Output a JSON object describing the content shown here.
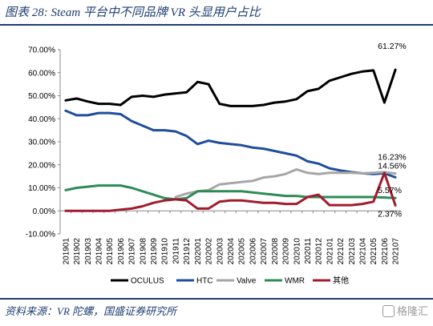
{
  "title": "图表 28:  Steam 平台中不同品牌 VR 头显用户占比",
  "source": "资料来源：VR 陀螺，国盛证券研究所",
  "watermark": "格隆汇",
  "chart_data": {
    "type": "line",
    "x": [
      "201901",
      "201902",
      "201903",
      "201904",
      "201905",
      "201906",
      "201907",
      "201908",
      "201909",
      "201910",
      "201911",
      "201912",
      "202001",
      "202002",
      "202003",
      "202004",
      "202005",
      "202006",
      "202007",
      "202008",
      "202009",
      "202010",
      "202011",
      "202012",
      "202101",
      "202102",
      "202103",
      "202104",
      "202105",
      "202106",
      "202107"
    ],
    "y_ticks": [
      "70.00%",
      "60.00%",
      "50.00%",
      "40.00%",
      "30.00%",
      "20.00%",
      "10.00%",
      "0.00%",
      "-10.00%"
    ],
    "ylim": [
      -10,
      70
    ],
    "grid": false,
    "legend_position": "bottom",
    "series": [
      {
        "name": "OCULUS",
        "color": "#000000",
        "values": [
          48,
          48.8,
          47.5,
          46.5,
          46.5,
          46,
          49.5,
          50,
          49.5,
          50.5,
          51,
          51.5,
          56,
          55,
          46.5,
          45.5,
          45.5,
          45.5,
          46,
          47,
          47.5,
          48.5,
          52,
          53,
          56.5,
          58,
          59.5,
          60.5,
          61,
          47,
          61.27
        ]
      },
      {
        "name": "HTC",
        "color": "#1f4e9a",
        "values": [
          43.5,
          41.5,
          41.5,
          42.5,
          42.5,
          42,
          39,
          37,
          35,
          35,
          34.5,
          32.5,
          29,
          30.5,
          29.5,
          29,
          28.5,
          27.5,
          27,
          26,
          25,
          24,
          21.5,
          20.5,
          18.5,
          17.5,
          16.8,
          16.3,
          16,
          16.3,
          14.56
        ]
      },
      {
        "name": "Valve",
        "color": "#a6a6a6",
        "values": [
          null,
          null,
          null,
          null,
          null,
          null,
          null,
          null,
          null,
          null,
          6,
          7.5,
          8.5,
          9,
          11.5,
          12,
          12.5,
          13,
          14.5,
          15,
          16,
          18,
          16.5,
          16,
          16.5,
          16.5,
          16.5,
          16.3,
          16.5,
          16.8,
          16.23
        ]
      },
      {
        "name": "WMR",
        "color": "#2e8b57",
        "values": [
          9,
          10,
          10.5,
          11,
          11,
          11,
          10,
          8.5,
          7,
          5.5,
          5,
          5.5,
          8.5,
          8.5,
          8.5,
          8.5,
          8.5,
          8,
          7.5,
          7,
          6.5,
          6.5,
          6,
          6,
          6,
          6,
          6,
          6,
          6,
          5.8,
          5.57
        ]
      },
      {
        "name": "其他",
        "color": "#a01c2e",
        "values": [
          0,
          0,
          0,
          0,
          0,
          0.5,
          1,
          2,
          3.5,
          4.5,
          5,
          4.5,
          1,
          1,
          4,
          4.5,
          4.5,
          4,
          3.5,
          3.5,
          3,
          3,
          6,
          7,
          2.5,
          2.5,
          2.5,
          3,
          4,
          16.5,
          2.37
        ]
      }
    ],
    "annotations": [
      {
        "text": "61.27%",
        "series": "OCULUS",
        "index": 30
      },
      {
        "text": "16.23%",
        "series": "Valve",
        "index": 30
      },
      {
        "text": "14.56%",
        "series": "HTC",
        "index": 30
      },
      {
        "text": "5.57%",
        "series": "WMR",
        "index": 30
      },
      {
        "text": "2.37%",
        "series": "其他",
        "index": 30
      }
    ]
  }
}
